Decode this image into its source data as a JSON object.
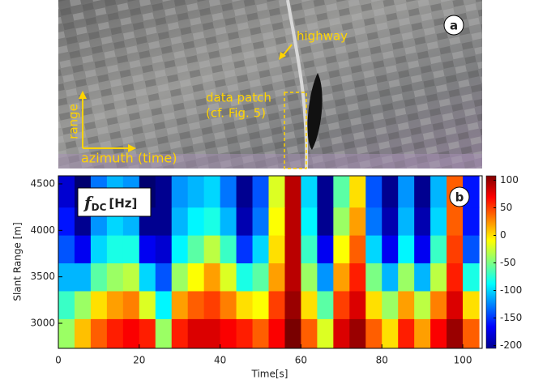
{
  "panel_a": {
    "badge": "a",
    "highway_label": "highway",
    "patch_label_line1": "data patch",
    "patch_label_line2": "(cf. Fig. 5)",
    "range_label": "range",
    "azimuth_label": "azimuth (time)"
  },
  "chart_data": {
    "type": "heatmap",
    "badge": "b",
    "label_symbol": "f",
    "label_subscript": "DC",
    "label_unit": "[Hz]",
    "x_label": "Time[s]",
    "y_label": "Slant Range [m]",
    "x": [
      2,
      6,
      10,
      14,
      18,
      22,
      26,
      30,
      34,
      38,
      42,
      46,
      50,
      54,
      58,
      62,
      66,
      70,
      74,
      78,
      82,
      86,
      90,
      94,
      98,
      102
    ],
    "y": [
      2900,
      3200,
      3500,
      3800,
      4100,
      4400
    ],
    "z": [
      [
        -40,
        10,
        40,
        60,
        70,
        60,
        -40,
        60,
        80,
        80,
        70,
        60,
        40,
        70,
        110,
        40,
        -20,
        80,
        100,
        40,
        0,
        60,
        20,
        70,
        100,
        40
      ],
      [
        -70,
        -40,
        0,
        20,
        30,
        -20,
        -90,
        20,
        40,
        50,
        30,
        0,
        -10,
        50,
        100,
        0,
        -60,
        50,
        80,
        0,
        -40,
        20,
        -30,
        30,
        80,
        0
      ],
      [
        -110,
        -110,
        -60,
        -40,
        -30,
        -100,
        -140,
        -40,
        -10,
        20,
        -20,
        -80,
        -60,
        20,
        90,
        -40,
        -120,
        20,
        60,
        -50,
        -110,
        -40,
        -110,
        -30,
        60,
        -80
      ],
      [
        -140,
        -170,
        -100,
        -80,
        -80,
        -170,
        -180,
        -90,
        -60,
        -30,
        -70,
        -150,
        -100,
        0,
        90,
        -70,
        -170,
        -10,
        40,
        -100,
        -170,
        -90,
        -170,
        -70,
        50,
        -140
      ],
      [
        -160,
        -200,
        -120,
        -100,
        -110,
        -200,
        -200,
        -110,
        -90,
        -80,
        -110,
        -190,
        -130,
        -10,
        90,
        -90,
        -200,
        -40,
        20,
        -130,
        -190,
        -110,
        -190,
        -100,
        40,
        -160
      ],
      [
        -180,
        -210,
        -130,
        -110,
        -120,
        -210,
        -200,
        -120,
        -110,
        -100,
        -130,
        -200,
        -140,
        -20,
        90,
        -100,
        -200,
        -60,
        0,
        -140,
        -200,
        -120,
        -200,
        -110,
        40,
        -160
      ]
    ],
    "xlim": [
      0,
      104.8
    ],
    "ylim": [
      2730,
      4587
    ],
    "clim": [
      -205,
      108
    ],
    "xticks": [
      0,
      20,
      40,
      60,
      80,
      100
    ],
    "yticks": [
      3000,
      3500,
      4000,
      4500
    ],
    "cticks": [
      100,
      50,
      0,
      -50,
      -100,
      -150,
      -200
    ],
    "colormap": "jet"
  }
}
